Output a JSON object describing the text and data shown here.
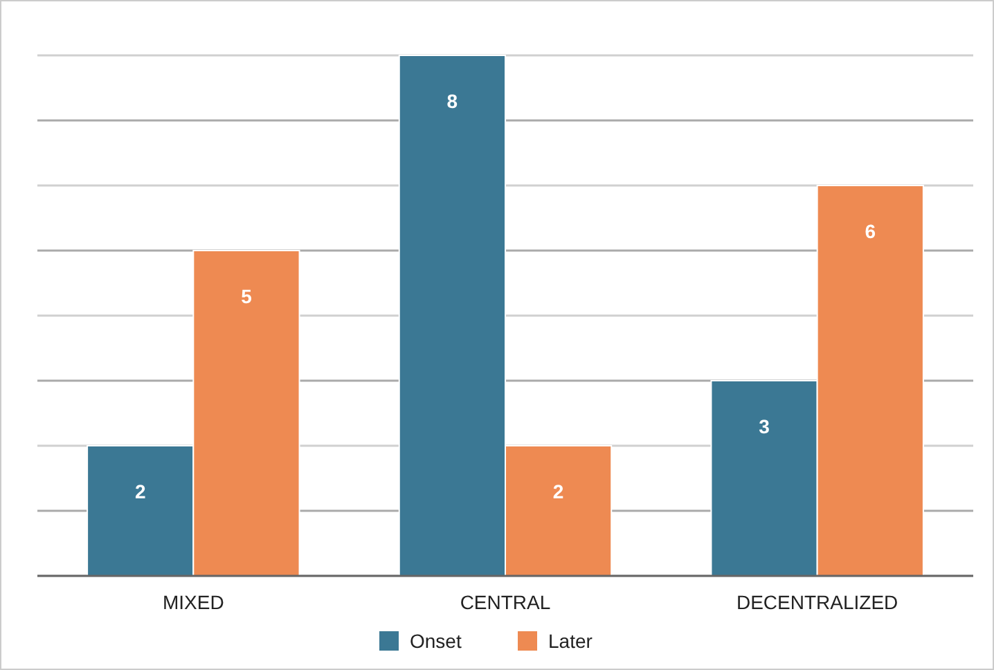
{
  "chart_data": {
    "type": "bar",
    "categories": [
      "MIXED",
      "CENTRAL",
      "DECENTRALIZED"
    ],
    "series": [
      {
        "name": "Onset",
        "color": "#3b7894",
        "values": [
          2,
          8,
          3
        ]
      },
      {
        "name": "Later",
        "color": "#ee8a52",
        "values": [
          5,
          2,
          6
        ]
      }
    ],
    "ylim": [
      0,
      8
    ],
    "yticks": [
      {
        "value": 0,
        "label": null
      },
      {
        "value": 1,
        "label": null
      },
      {
        "value": 2,
        "label": null
      },
      {
        "value": 3,
        "label": null
      },
      {
        "value": 4,
        "label": null
      },
      {
        "value": 5,
        "label": null
      },
      {
        "value": 6,
        "label": null
      },
      {
        "value": 7,
        "label": null
      },
      {
        "value": 8,
        "label": null
      }
    ],
    "tick_labels": "x",
    "grid": "y",
    "data_labels": true,
    "legend": "bottom"
  }
}
